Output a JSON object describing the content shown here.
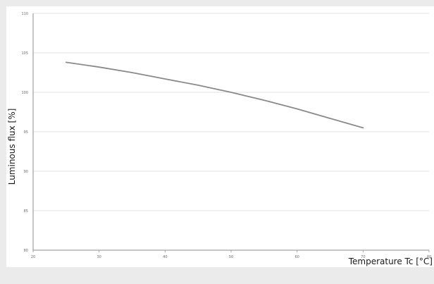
{
  "chart_data": {
    "type": "line",
    "title": "",
    "xlabel": "Temperature Tc [°C]",
    "ylabel": "Luminous flux [%]",
    "xlim": [
      20,
      80
    ],
    "ylim": [
      80,
      110
    ],
    "x_ticks": [
      20,
      30,
      40,
      50,
      60,
      70,
      80
    ],
    "y_ticks": [
      80,
      85,
      90,
      95,
      100,
      105,
      110
    ],
    "grid": "horizontal",
    "legend": "none",
    "series": [
      {
        "color": "#8a8a8a",
        "x": [
          25,
          30,
          35,
          40,
          45,
          50,
          55,
          60,
          65,
          70
        ],
        "y": [
          103.8,
          103.2,
          102.5,
          101.7,
          100.9,
          100.0,
          99.0,
          97.9,
          96.7,
          95.5
        ]
      }
    ]
  },
  "colors": {
    "background": "#ebebeb",
    "panel": "#ffffff",
    "grid": "#e3e3e3",
    "axis": "#8c8c8c"
  }
}
